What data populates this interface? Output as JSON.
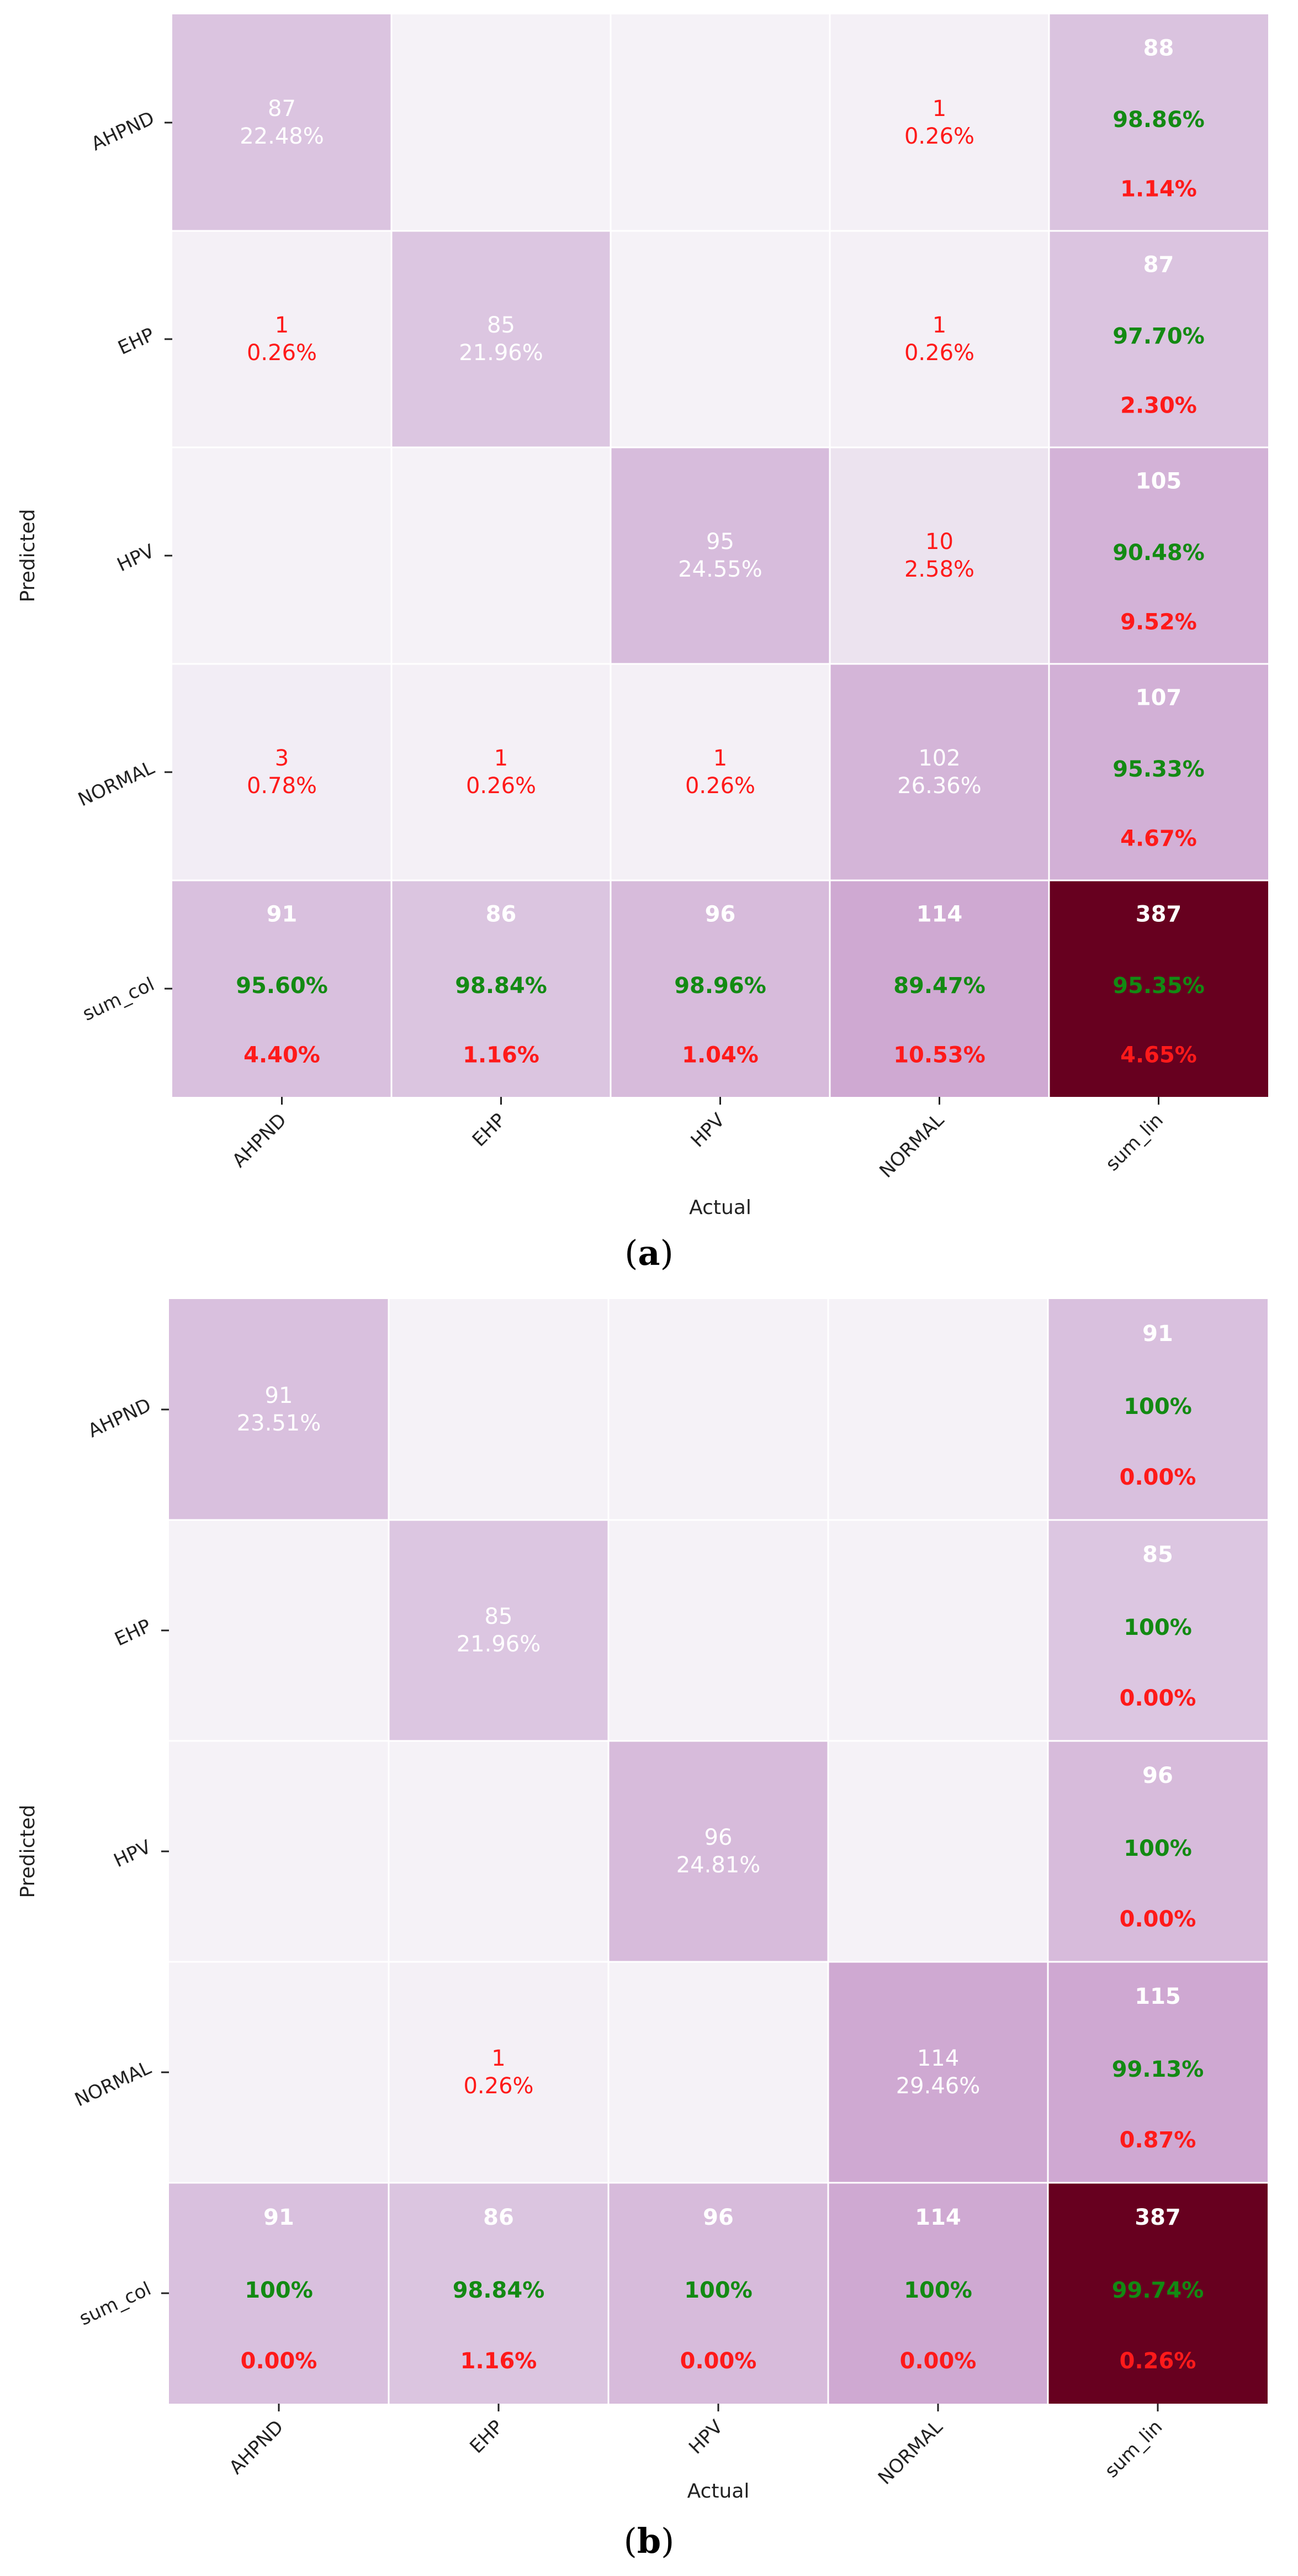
{
  "chart_data": [
    {
      "type": "heatmap",
      "panel": "a",
      "caption_letter": "a",
      "xlabel": "Actual",
      "ylabel": "Predicted",
      "row_labels": [
        "AHPND",
        "EHP",
        "HPV",
        "NORMAL",
        "sum_col"
      ],
      "col_labels": [
        "AHPND",
        "EHP",
        "HPV",
        "NORMAL",
        "sum_lin"
      ],
      "cells": [
        [
          {
            "value": "87",
            "pct": "22.48%",
            "kind": "diag",
            "level": 87
          },
          {
            "value": "",
            "kind": "empty",
            "level": 0
          },
          {
            "value": "",
            "kind": "empty",
            "level": 0
          },
          {
            "value": "1",
            "pct": "0.26%",
            "kind": "off",
            "level": 1
          },
          {
            "value": "88",
            "good": "98.86%",
            "bad": "1.14%",
            "kind": "sum",
            "level": 88
          }
        ],
        [
          {
            "value": "1",
            "pct": "0.26%",
            "kind": "off",
            "level": 1
          },
          {
            "value": "85",
            "pct": "21.96%",
            "kind": "diag",
            "level": 85
          },
          {
            "value": "",
            "kind": "empty",
            "level": 0
          },
          {
            "value": "1",
            "pct": "0.26%",
            "kind": "off",
            "level": 1
          },
          {
            "value": "87",
            "good": "97.70%",
            "bad": "2.30%",
            "kind": "sum",
            "level": 87
          }
        ],
        [
          {
            "value": "",
            "kind": "empty",
            "level": 0
          },
          {
            "value": "",
            "kind": "empty",
            "level": 0
          },
          {
            "value": "95",
            "pct": "24.55%",
            "kind": "diag",
            "level": 95
          },
          {
            "value": "10",
            "pct": "2.58%",
            "kind": "off",
            "level": 10
          },
          {
            "value": "105",
            "good": "90.48%",
            "bad": "9.52%",
            "kind": "sum",
            "level": 105
          }
        ],
        [
          {
            "value": "3",
            "pct": "0.78%",
            "kind": "off",
            "level": 3
          },
          {
            "value": "1",
            "pct": "0.26%",
            "kind": "off",
            "level": 1
          },
          {
            "value": "1",
            "pct": "0.26%",
            "kind": "off",
            "level": 1
          },
          {
            "value": "102",
            "pct": "26.36%",
            "kind": "diag",
            "level": 102
          },
          {
            "value": "107",
            "good": "95.33%",
            "bad": "4.67%",
            "kind": "sum",
            "level": 107
          }
        ],
        [
          {
            "value": "91",
            "good": "95.60%",
            "bad": "4.40%",
            "kind": "sum",
            "level": 91
          },
          {
            "value": "86",
            "good": "98.84%",
            "bad": "1.16%",
            "kind": "sum",
            "level": 86
          },
          {
            "value": "96",
            "good": "98.96%",
            "bad": "1.04%",
            "kind": "sum",
            "level": 96
          },
          {
            "value": "114",
            "good": "89.47%",
            "bad": "10.53%",
            "kind": "sum",
            "level": 114
          },
          {
            "value": "387",
            "good": "95.35%",
            "bad": "4.65%",
            "kind": "total",
            "level": 387
          }
        ]
      ]
    },
    {
      "type": "heatmap",
      "panel": "b",
      "caption_letter": "b",
      "xlabel": "Actual",
      "ylabel": "Predicted",
      "row_labels": [
        "AHPND",
        "EHP",
        "HPV",
        "NORMAL",
        "sum_col"
      ],
      "col_labels": [
        "AHPND",
        "EHP",
        "HPV",
        "NORMAL",
        "sum_lin"
      ],
      "cells": [
        [
          {
            "value": "91",
            "pct": "23.51%",
            "kind": "diag",
            "level": 91
          },
          {
            "value": "",
            "kind": "empty",
            "level": 0
          },
          {
            "value": "",
            "kind": "empty",
            "level": 0
          },
          {
            "value": "",
            "kind": "empty",
            "level": 0
          },
          {
            "value": "91",
            "good": "100%",
            "bad": "0.00%",
            "kind": "sum",
            "level": 91
          }
        ],
        [
          {
            "value": "",
            "kind": "empty",
            "level": 0
          },
          {
            "value": "85",
            "pct": "21.96%",
            "kind": "diag",
            "level": 85
          },
          {
            "value": "",
            "kind": "empty",
            "level": 0
          },
          {
            "value": "",
            "kind": "empty",
            "level": 0
          },
          {
            "value": "85",
            "good": "100%",
            "bad": "0.00%",
            "kind": "sum",
            "level": 85
          }
        ],
        [
          {
            "value": "",
            "kind": "empty",
            "level": 0
          },
          {
            "value": "",
            "kind": "empty",
            "level": 0
          },
          {
            "value": "96",
            "pct": "24.81%",
            "kind": "diag",
            "level": 96
          },
          {
            "value": "",
            "kind": "empty",
            "level": 0
          },
          {
            "value": "96",
            "good": "100%",
            "bad": "0.00%",
            "kind": "sum",
            "level": 96
          }
        ],
        [
          {
            "value": "",
            "kind": "empty",
            "level": 0
          },
          {
            "value": "1",
            "pct": "0.26%",
            "kind": "off",
            "level": 1
          },
          {
            "value": "",
            "kind": "empty",
            "level": 0
          },
          {
            "value": "114",
            "pct": "29.46%",
            "kind": "diag",
            "level": 114
          },
          {
            "value": "115",
            "good": "99.13%",
            "bad": "0.87%",
            "kind": "sum",
            "level": 115
          }
        ],
        [
          {
            "value": "91",
            "good": "100%",
            "bad": "0.00%",
            "kind": "sum",
            "level": 91
          },
          {
            "value": "86",
            "good": "98.84%",
            "bad": "1.16%",
            "kind": "sum",
            "level": 86
          },
          {
            "value": "96",
            "good": "100%",
            "bad": "0.00%",
            "kind": "sum",
            "level": 96
          },
          {
            "value": "114",
            "good": "100%",
            "bad": "0.00%",
            "kind": "sum",
            "level": 114
          },
          {
            "value": "387",
            "good": "99.74%",
            "bad": "0.26%",
            "kind": "total",
            "level": 387
          }
        ]
      ]
    }
  ],
  "colors": {
    "empty": "#f5f2f7",
    "light": "#dcc7e1",
    "mid": "#cfa8d2",
    "total": "#67001f",
    "grid": "#ffffff",
    "good": "#138a13",
    "bad": "#ff1a1a",
    "diag_text": "#ffffff",
    "axis": "#222222"
  }
}
